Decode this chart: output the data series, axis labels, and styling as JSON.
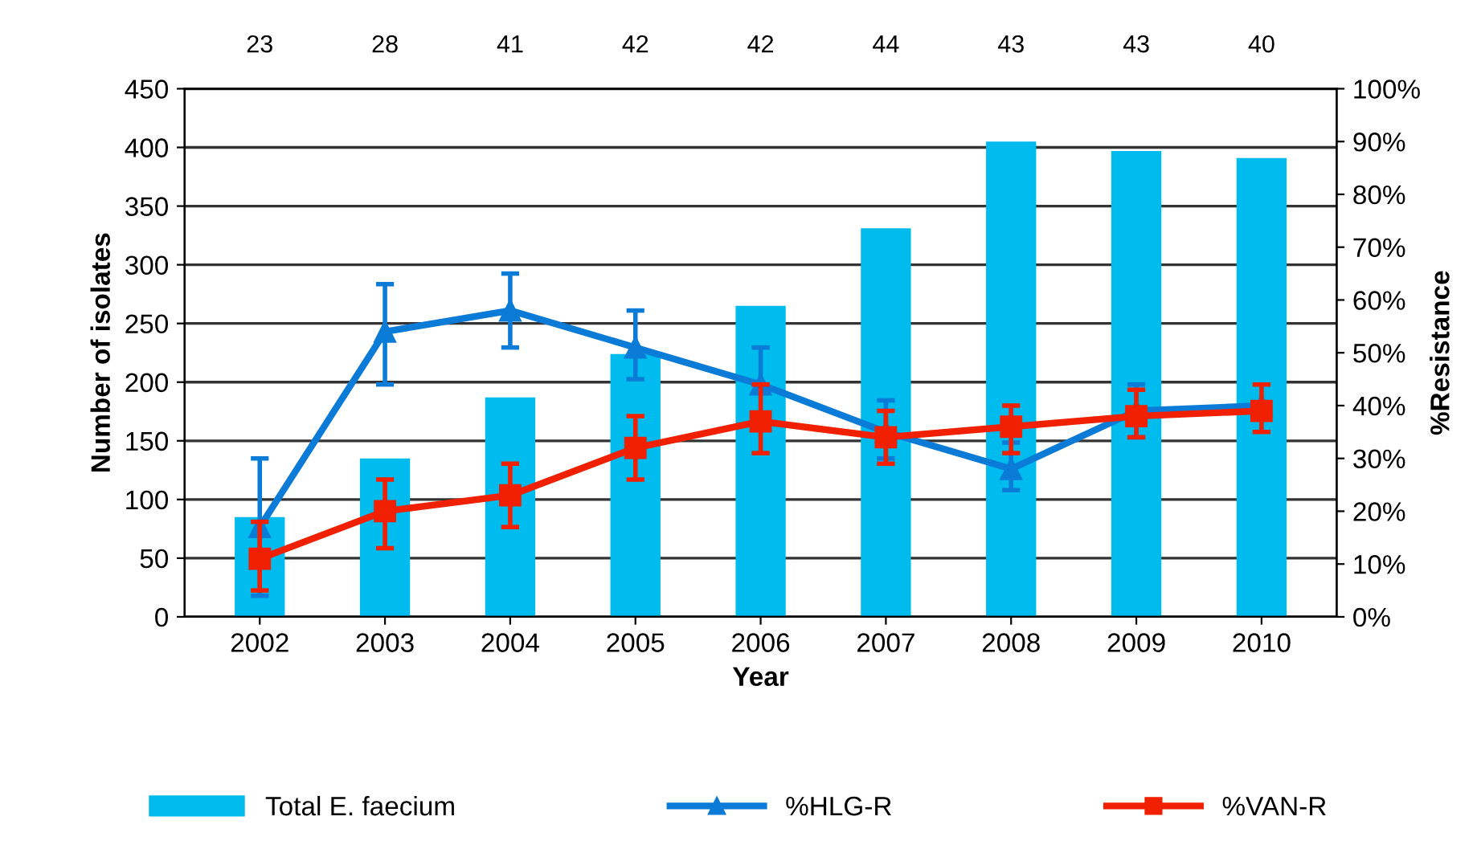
{
  "chart_data": {
    "type": "bar",
    "xlabel": "Year",
    "ylabel": "Number of isolates",
    "y2label": "%Resistance",
    "categories": [
      "2002",
      "2003",
      "2004",
      "2005",
      "2006",
      "2007",
      "2008",
      "2009",
      "2010"
    ],
    "series": [
      {
        "name": "Total E. faecium",
        "color": "#00bbee",
        "values": [
          85,
          135,
          187,
          224,
          265,
          331,
          405,
          397,
          391
        ]
      },
      {
        "name": "%HLG-R",
        "type": "line",
        "axis": "y2",
        "color": "#0a7bd6",
        "marker": "triangle",
        "values": [
          17,
          54,
          58,
          51,
          44,
          35,
          28,
          39,
          40
        ],
        "errors": [
          [
            4,
            30
          ],
          [
            44,
            63
          ],
          [
            51,
            65
          ],
          [
            45,
            58
          ],
          [
            44,
            51
          ],
          [
            30,
            41
          ],
          [
            24,
            33
          ],
          [
            34,
            44
          ],
          null
        ]
      },
      {
        "name": "%VAN-R",
        "type": "line",
        "axis": "y2",
        "color": "#f02000",
        "marker": "square",
        "values": [
          11,
          20,
          23,
          32,
          37,
          34,
          36,
          38,
          39
        ],
        "errors": [
          [
            5,
            18
          ],
          [
            13,
            26
          ],
          [
            17,
            29
          ],
          [
            26,
            38
          ],
          [
            31,
            44
          ],
          [
            29,
            39
          ],
          [
            31,
            40
          ],
          [
            34,
            43
          ],
          [
            35,
            44
          ]
        ]
      }
    ],
    "ylim": [
      0,
      450
    ],
    "yticks": [
      0,
      50,
      100,
      150,
      200,
      250,
      300,
      350,
      400,
      450
    ],
    "y2lim": [
      0,
      100
    ],
    "y2ticks": [
      {
        "value": 0,
        "label": "0%"
      },
      {
        "value": 10,
        "label": "10%"
      },
      {
        "value": 20,
        "label": "20%"
      },
      {
        "value": 30,
        "label": "30%"
      },
      {
        "value": 40,
        "label": "40%"
      },
      {
        "value": 50,
        "label": "50%"
      },
      {
        "value": 60,
        "label": "60%"
      },
      {
        "value": 70,
        "label": "70%"
      },
      {
        "value": 80,
        "label": "80%"
      },
      {
        "value": 90,
        "label": "90%"
      },
      {
        "value": 100,
        "label": "100%"
      }
    ],
    "annotations": [
      "23",
      "28",
      "41",
      "42",
      "42",
      "44",
      "43",
      "43",
      "40"
    ],
    "grid": "y",
    "legend": "bottom"
  }
}
